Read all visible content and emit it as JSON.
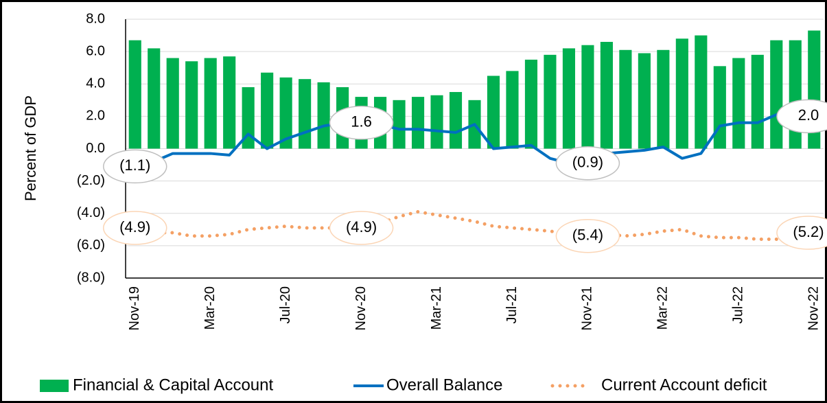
{
  "chart_data": {
    "type": "bar",
    "y_label": "Percent of GDP",
    "categories": [
      "Nov-19",
      null,
      null,
      null,
      "Mar-20",
      null,
      null,
      null,
      "Jul-20",
      null,
      null,
      null,
      "Nov-20",
      null,
      null,
      null,
      "Mar-21",
      null,
      null,
      null,
      "Jul-21",
      null,
      null,
      null,
      "Nov-21",
      null,
      null,
      null,
      "Mar-22",
      null,
      null,
      null,
      "Jul-22",
      null,
      null,
      null,
      "Nov-22"
    ],
    "series": [
      {
        "name": "Financial & Capital Account",
        "type": "bar",
        "color": "#00b050",
        "values": [
          6.7,
          6.2,
          5.6,
          5.4,
          5.6,
          5.7,
          3.8,
          4.7,
          4.4,
          4.3,
          4.1,
          3.8,
          3.2,
          3.2,
          3.0,
          3.2,
          3.3,
          3.5,
          3.0,
          4.5,
          4.8,
          5.5,
          5.8,
          6.2,
          6.4,
          6.6,
          6.1,
          5.9,
          6.1,
          6.8,
          7.0,
          5.1,
          5.6,
          5.8,
          6.7,
          6.7,
          7.3
        ]
      },
      {
        "name": "Overall Balance",
        "type": "line",
        "color": "#0070c0",
        "dash": "solid",
        "label_border": "#bfbfbf",
        "values": [
          -1.1,
          -0.8,
          -0.3,
          -0.3,
          -0.3,
          -0.4,
          0.9,
          0.0,
          0.6,
          1.0,
          1.4,
          1.6,
          1.6,
          1.5,
          1.2,
          1.2,
          1.1,
          1.0,
          1.5,
          0.0,
          0.1,
          0.2,
          -0.6,
          -0.9,
          -0.9,
          -0.3,
          -0.2,
          -0.1,
          0.1,
          -0.6,
          -0.3,
          1.4,
          1.6,
          1.6,
          2.1,
          2.0,
          2.0
        ],
        "value_labels": [
          "(1.1)",
          null,
          null,
          null,
          null,
          null,
          null,
          null,
          null,
          null,
          null,
          null,
          "1.6",
          null,
          null,
          null,
          null,
          null,
          null,
          null,
          null,
          null,
          null,
          null,
          "(0.9)",
          null,
          null,
          null,
          null,
          null,
          null,
          null,
          null,
          null,
          null,
          null,
          "2.0"
        ]
      },
      {
        "name": "Current Account deficit",
        "type": "line",
        "color": "#f4a064",
        "dash": "dotted",
        "label_border": "#fbd5b5",
        "values": [
          -4.9,
          -5.2,
          -5.2,
          -5.4,
          -5.4,
          -5.3,
          -5.0,
          -4.9,
          -4.8,
          -4.9,
          -4.9,
          -4.9,
          -4.9,
          -4.6,
          -4.2,
          -3.9,
          -4.1,
          -4.3,
          -4.5,
          -4.8,
          -4.9,
          -5.0,
          -5.1,
          -5.3,
          -5.4,
          -5.3,
          -5.4,
          -5.3,
          -5.1,
          -5.0,
          -5.4,
          -5.5,
          -5.5,
          -5.6,
          -5.6,
          -5.4,
          -5.2
        ],
        "value_labels": [
          "(4.9)",
          null,
          null,
          null,
          null,
          null,
          null,
          null,
          null,
          null,
          null,
          null,
          "(4.9)",
          null,
          null,
          null,
          null,
          null,
          null,
          null,
          null,
          null,
          null,
          null,
          "(5.4)",
          null,
          null,
          null,
          null,
          null,
          null,
          null,
          null,
          null,
          null,
          null,
          "(5.2)"
        ]
      }
    ],
    "ylim": [
      -8,
      8
    ],
    "yticks": [
      {
        "value": -8,
        "label": "(8.0)"
      },
      {
        "value": -6,
        "label": "(6.0)"
      },
      {
        "value": -4,
        "label": "(4.0)"
      },
      {
        "value": -2,
        "label": "(2.0)"
      },
      {
        "value": 0,
        "label": "0.0"
      },
      {
        "value": 2,
        "label": "2.0"
      },
      {
        "value": 4,
        "label": "4.0"
      },
      {
        "value": 6,
        "label": "6.0"
      },
      {
        "value": 8,
        "label": "8.0"
      }
    ],
    "grid": true,
    "legend": "bottom"
  }
}
